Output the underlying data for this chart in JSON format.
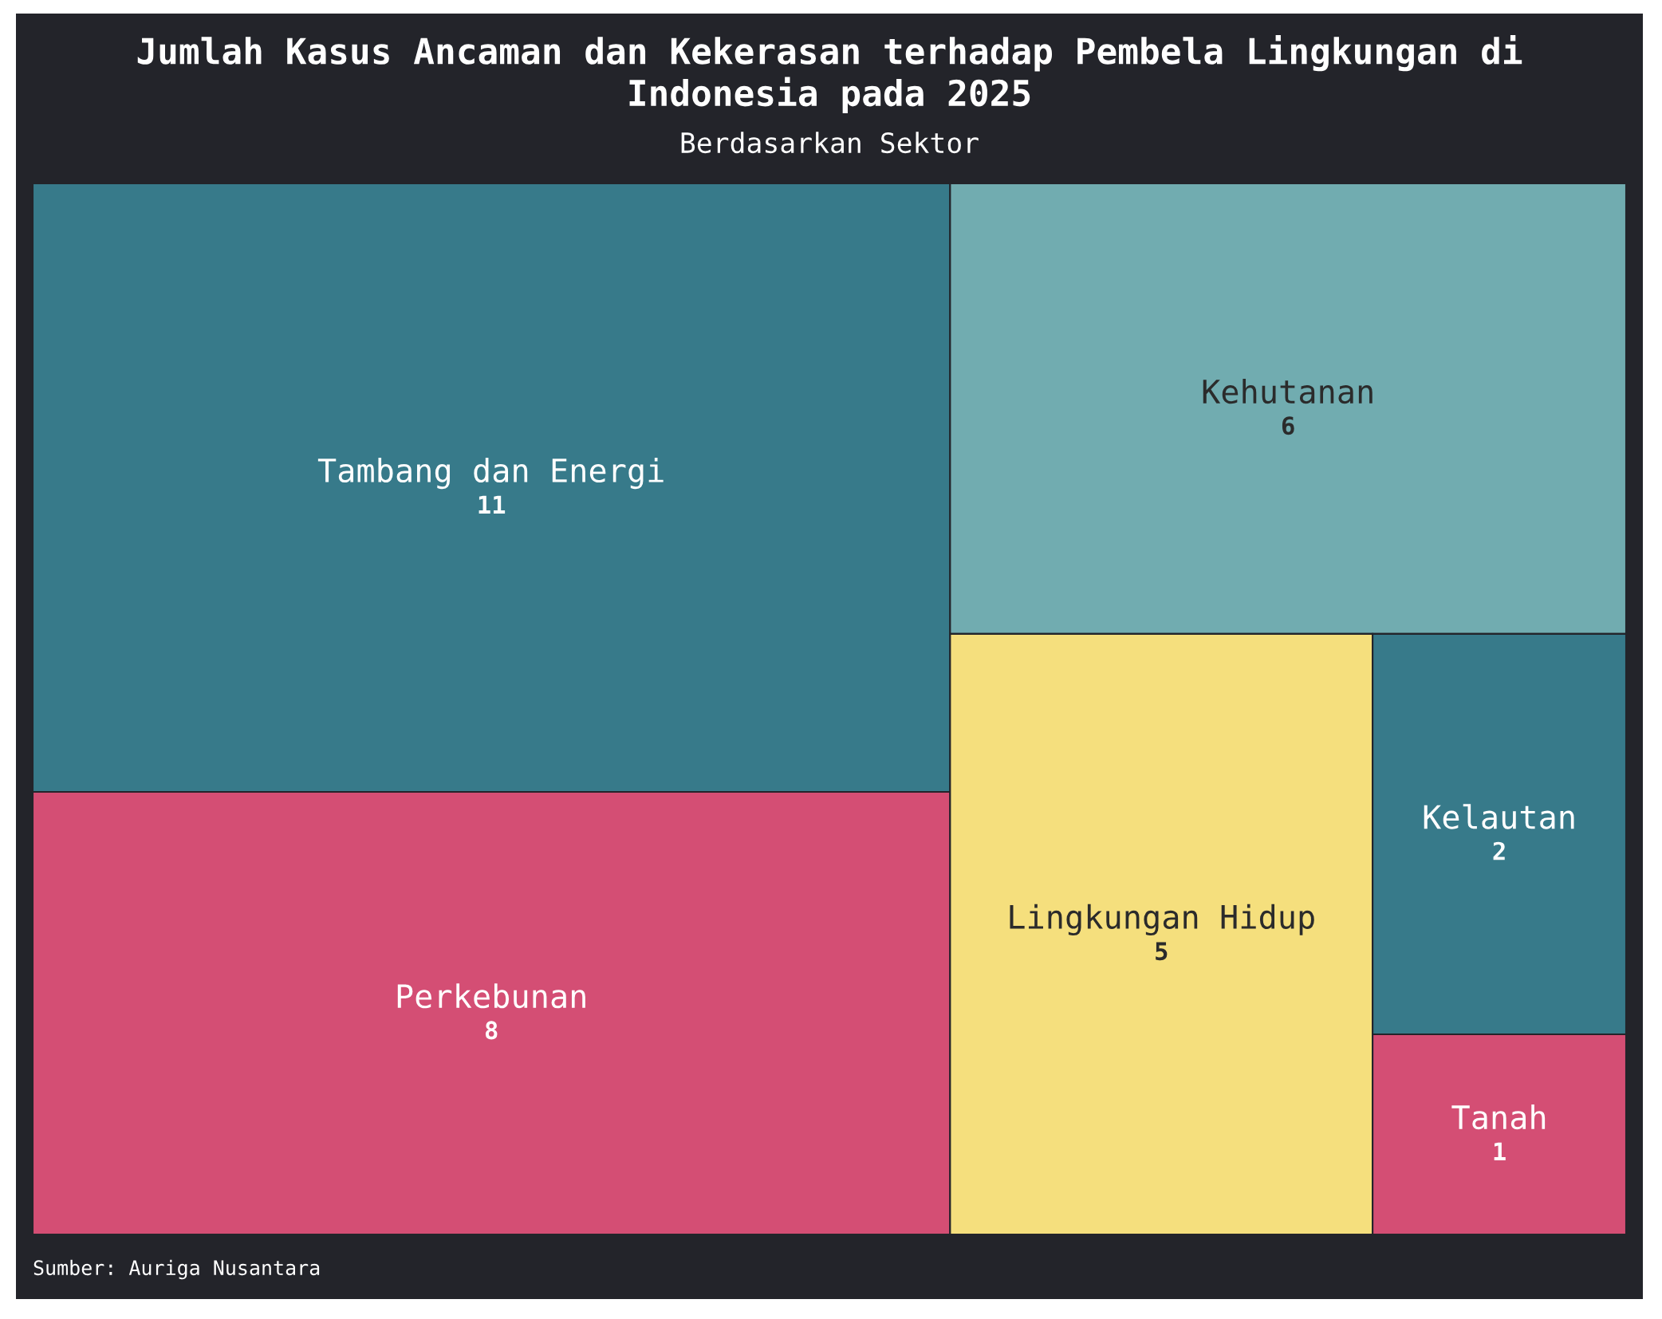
{
  "chart_data": {
    "type": "other",
    "title": "Jumlah Kasus Ancaman dan Kekerasan terhadap Pembela Lingkungan di\nIndonesia pada 2025",
    "subtitle": "Berdasarkan Sektor",
    "categories": [
      "Tambang dan Energi",
      "Perkebunan",
      "Kehutanan",
      "Lingkungan Hidup",
      "Kelautan",
      "Tanah"
    ],
    "values": [
      11,
      8,
      6,
      5,
      2,
      1
    ],
    "colors": [
      "#377a8a",
      "#d44e74",
      "#71acb0",
      "#f5df7d",
      "#377a8a",
      "#d44e74"
    ],
    "data_labels": true,
    "annotations": [
      "Sumber: Auriga Nusantara"
    ]
  }
}
